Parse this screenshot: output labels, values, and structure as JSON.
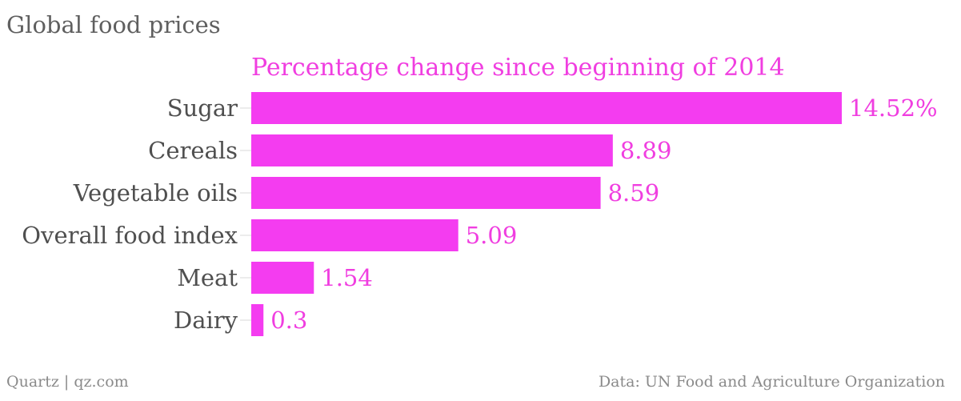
{
  "header": {
    "title": "Global food prices"
  },
  "footer": {
    "source_left": "Quartz | qz.com",
    "source_right": "Data: UN Food and Agriculture Organization"
  },
  "colors": {
    "bar": "#f43cf0",
    "value_text": "#f03ee0",
    "label_text": "#4f4f4f"
  },
  "chart_data": {
    "type": "bar",
    "orientation": "horizontal",
    "title": "Global food prices",
    "subtitle": "Percentage change since beginning of 2014",
    "categories": [
      "Sugar",
      "Cereals",
      "Vegetable oils",
      "Overall food index",
      "Meat",
      "Dairy"
    ],
    "values": [
      14.52,
      8.89,
      8.59,
      5.09,
      1.54,
      0.3
    ],
    "value_labels": [
      "14.52%",
      "8.89",
      "8.59",
      "5.09",
      "1.54",
      "0.3"
    ],
    "xlim": [
      0,
      14.52
    ],
    "grid": false,
    "legend": "none"
  }
}
